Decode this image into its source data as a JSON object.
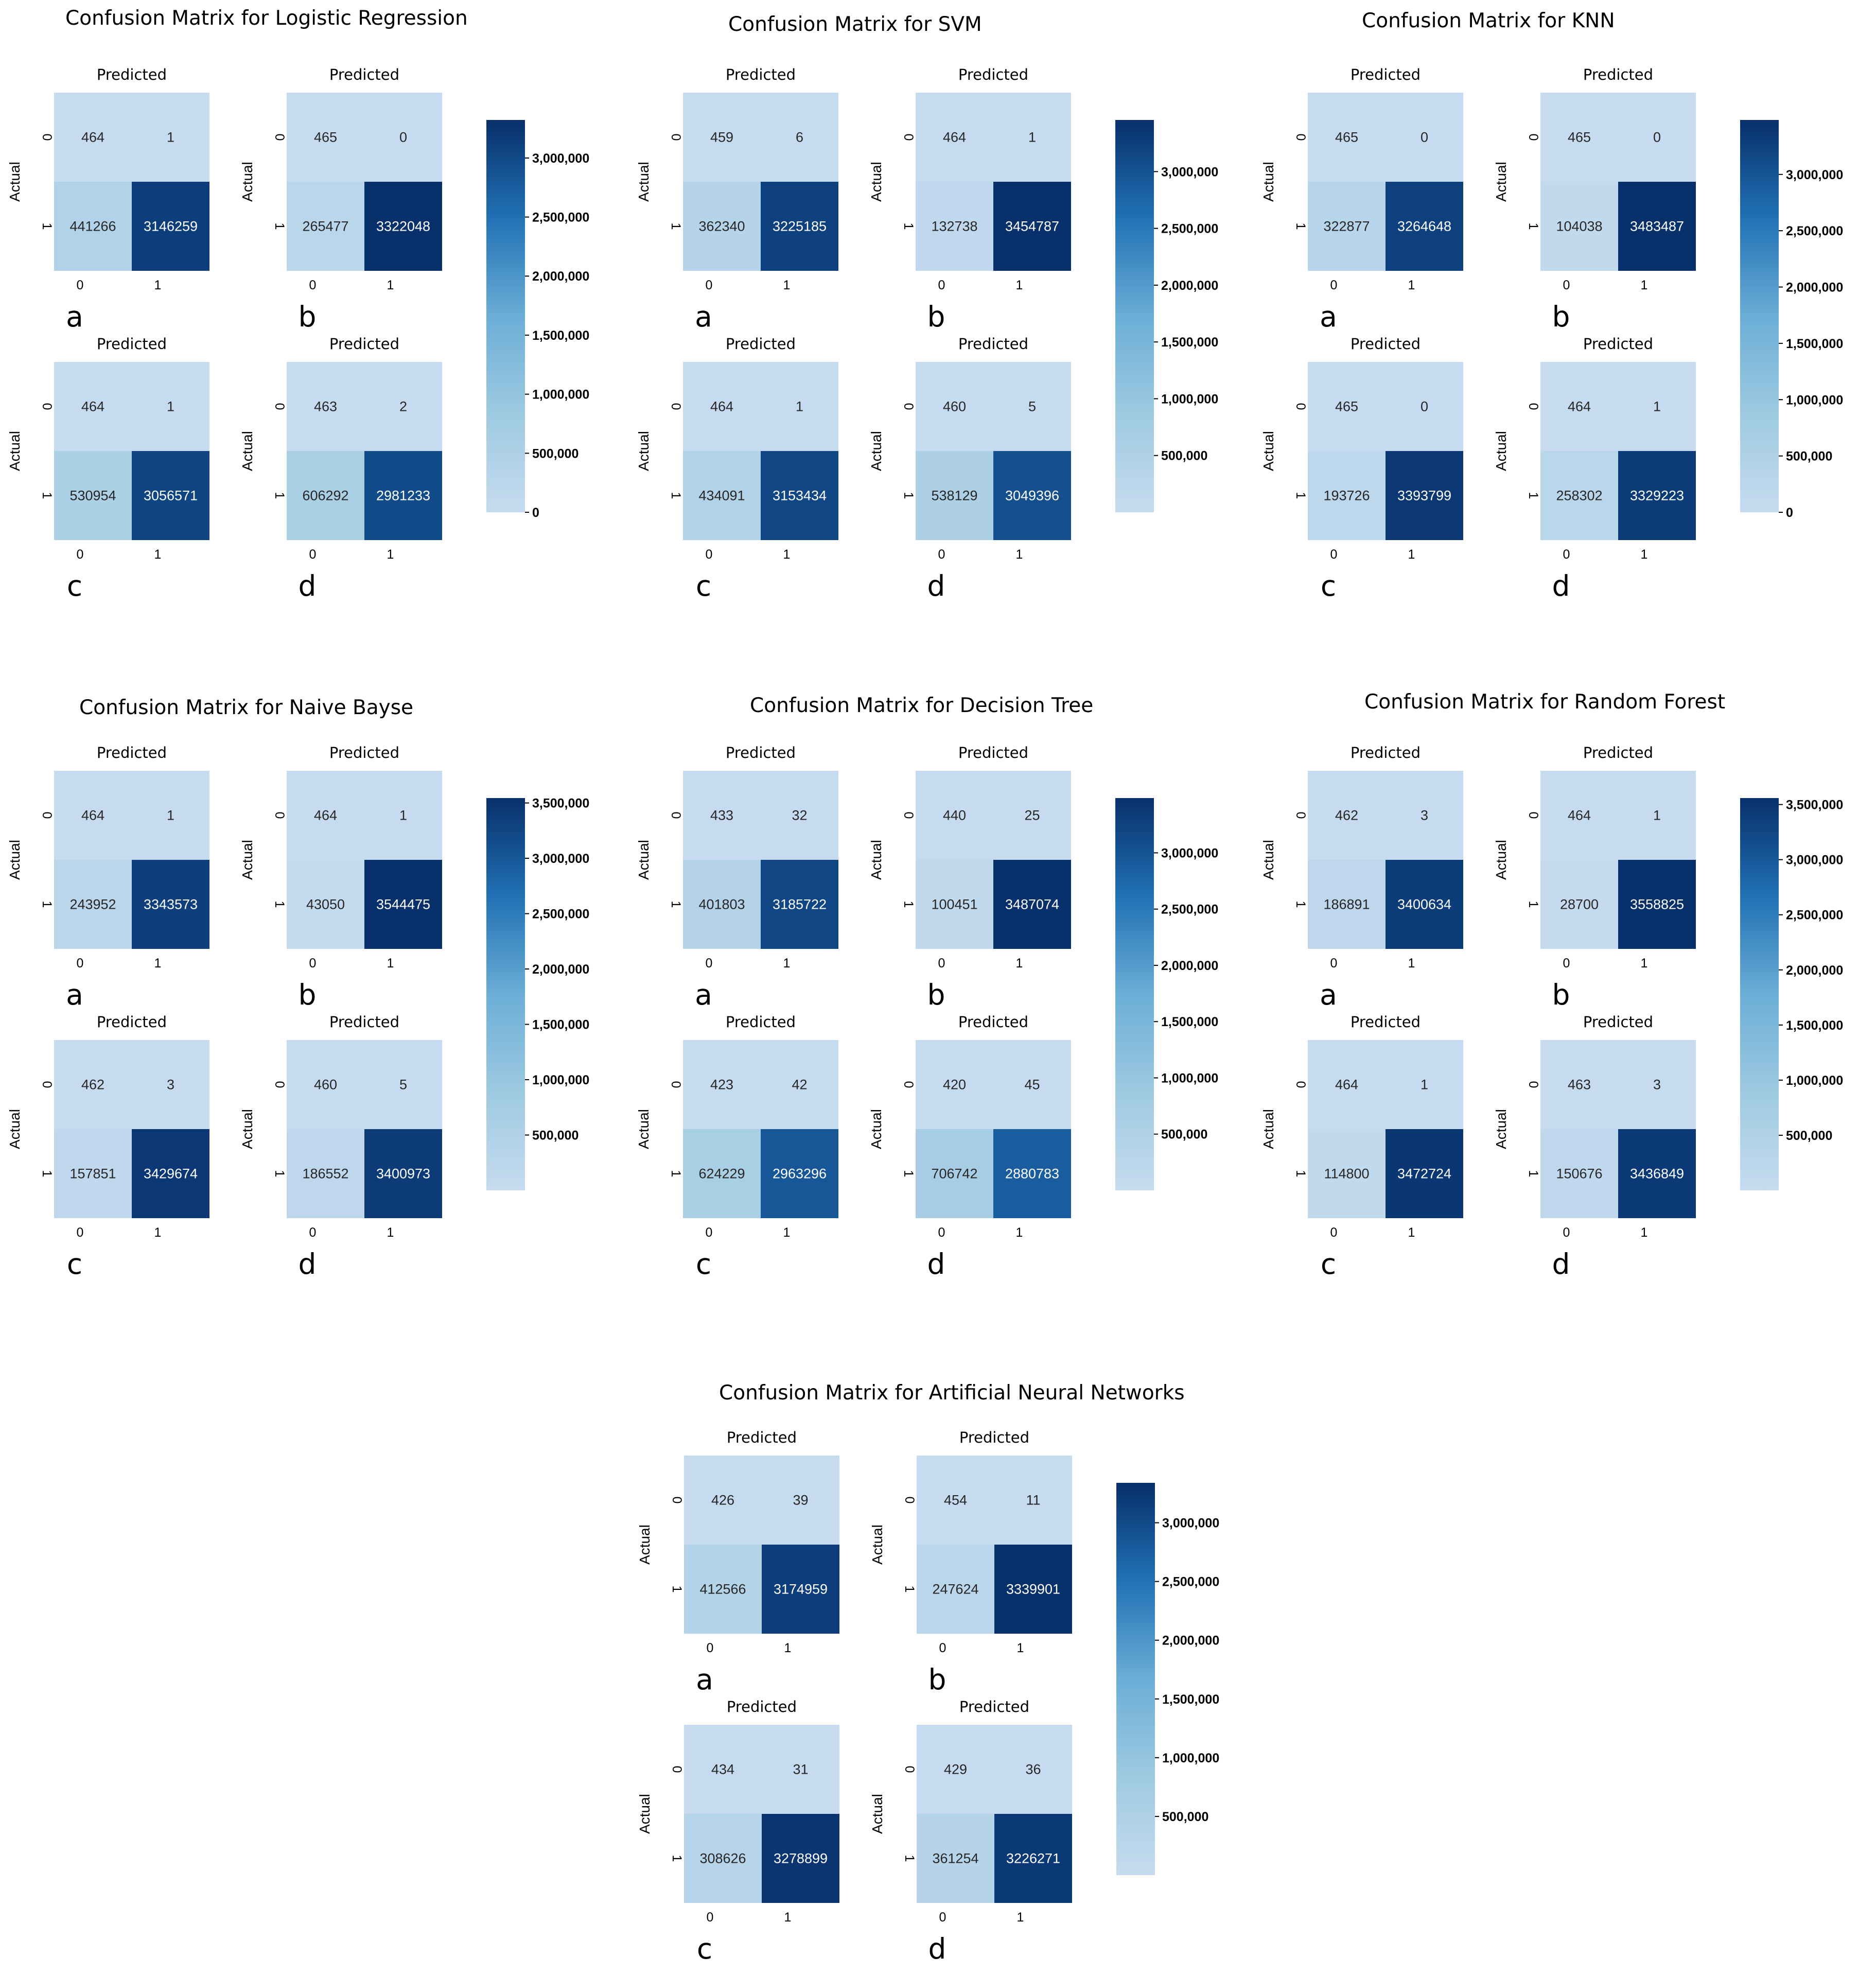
{
  "chart_data": [
    {
      "type": "heatmap",
      "title": "Confusion Matrix for Logistic Regression",
      "colorbar": {
        "range": [
          0,
          3322048
        ],
        "ticks": [
          "0",
          "500,000",
          "1,000,000",
          "1,500,000",
          "2,000,000",
          "2,500,000",
          "3,000,000"
        ]
      },
      "matrices": [
        {
          "label": "a",
          "xlabel": "Predicted",
          "ylabel": "Actual",
          "x_categories": [
            "0",
            "1"
          ],
          "y_categories": [
            "0",
            "1"
          ],
          "values": [
            [
              464,
              1
            ],
            [
              441266,
              3146259
            ]
          ]
        },
        {
          "label": "b",
          "xlabel": "Predicted",
          "ylabel": "Actual",
          "x_categories": [
            "0",
            "1"
          ],
          "y_categories": [
            "0",
            "1"
          ],
          "values": [
            [
              465,
              0
            ],
            [
              265477,
              3322048
            ]
          ]
        },
        {
          "label": "c",
          "xlabel": "Predicted",
          "ylabel": "Actual",
          "x_categories": [
            "0",
            "1"
          ],
          "y_categories": [
            "0",
            "1"
          ],
          "values": [
            [
              464,
              1
            ],
            [
              530954,
              3056571
            ]
          ]
        },
        {
          "label": "d",
          "xlabel": "Predicted",
          "ylabel": "Actual",
          "x_categories": [
            "0",
            "1"
          ],
          "y_categories": [
            "0",
            "1"
          ],
          "values": [
            [
              463,
              2
            ],
            [
              606292,
              2981233
            ]
          ]
        }
      ]
    },
    {
      "type": "heatmap",
      "title": "Confusion Matrix for SVM",
      "colorbar": {
        "range": [
          0,
          3454787
        ],
        "ticks": [
          "500,000",
          "1,000,000",
          "1,500,000",
          "2,000,000",
          "2,500,000",
          "3,000,000"
        ]
      },
      "matrices": [
        {
          "label": "a",
          "xlabel": "Predicted",
          "ylabel": "Actual",
          "x_categories": [
            "0",
            "1"
          ],
          "y_categories": [
            "0",
            "1"
          ],
          "values": [
            [
              459,
              6
            ],
            [
              362340,
              3225185
            ]
          ]
        },
        {
          "label": "b",
          "xlabel": "Predicted",
          "ylabel": "Actual",
          "x_categories": [
            "0",
            "1"
          ],
          "y_categories": [
            "0",
            "1"
          ],
          "values": [
            [
              464,
              1
            ],
            [
              132738,
              3454787
            ]
          ]
        },
        {
          "label": "c",
          "xlabel": "Predicted",
          "ylabel": "Actual",
          "x_categories": [
            "0",
            "1"
          ],
          "y_categories": [
            "0",
            "1"
          ],
          "values": [
            [
              464,
              1
            ],
            [
              434091,
              3153434
            ]
          ]
        },
        {
          "label": "d",
          "xlabel": "Predicted",
          "ylabel": "Actual",
          "x_categories": [
            "0",
            "1"
          ],
          "y_categories": [
            "0",
            "1"
          ],
          "values": [
            [
              460,
              5
            ],
            [
              538129,
              3049396
            ]
          ]
        }
      ]
    },
    {
      "type": "heatmap",
      "title": "Confusion Matrix for KNN",
      "colorbar": {
        "range": [
          0,
          3483487
        ],
        "ticks": [
          "0",
          "500,000",
          "1,000,000",
          "1,500,000",
          "2,000,000",
          "2,500,000",
          "3,000,000"
        ]
      },
      "matrices": [
        {
          "label": "a",
          "xlabel": "Predicted",
          "ylabel": "Actual",
          "x_categories": [
            "0",
            "1"
          ],
          "y_categories": [
            "0",
            "1"
          ],
          "values": [
            [
              465,
              0
            ],
            [
              322877,
              3264648
            ]
          ]
        },
        {
          "label": "b",
          "xlabel": "Predicted",
          "ylabel": "Actual",
          "x_categories": [
            "0",
            "1"
          ],
          "y_categories": [
            "0",
            "1"
          ],
          "values": [
            [
              465,
              0
            ],
            [
              104038,
              3483487
            ]
          ]
        },
        {
          "label": "c",
          "xlabel": "Predicted",
          "ylabel": "Actual",
          "x_categories": [
            "0",
            "1"
          ],
          "y_categories": [
            "0",
            "1"
          ],
          "values": [
            [
              465,
              0
            ],
            [
              193726,
              3393799
            ]
          ]
        },
        {
          "label": "d",
          "xlabel": "Predicted",
          "ylabel": "Actual",
          "x_categories": [
            "0",
            "1"
          ],
          "y_categories": [
            "0",
            "1"
          ],
          "values": [
            [
              464,
              1
            ],
            [
              258302,
              3329223
            ]
          ]
        }
      ]
    },
    {
      "type": "heatmap",
      "title": "Confusion Matrix for Naive Bayse",
      "colorbar": {
        "range": [
          0,
          3544475
        ],
        "ticks": [
          "500,000",
          "1,000,000",
          "1,500,000",
          "2,000,000",
          "2,500,000",
          "3,000,000",
          "3,500,000"
        ]
      },
      "matrices": [
        {
          "label": "a",
          "xlabel": "Predicted",
          "ylabel": "Actual",
          "x_categories": [
            "0",
            "1"
          ],
          "y_categories": [
            "0",
            "1"
          ],
          "values": [
            [
              464,
              1
            ],
            [
              243952,
              3343573
            ]
          ]
        },
        {
          "label": "b",
          "xlabel": "Predicted",
          "ylabel": "Actual",
          "x_categories": [
            "0",
            "1"
          ],
          "y_categories": [
            "0",
            "1"
          ],
          "values": [
            [
              464,
              1
            ],
            [
              43050,
              3544475
            ]
          ]
        },
        {
          "label": "c",
          "xlabel": "Predicted",
          "ylabel": "Actual",
          "x_categories": [
            "0",
            "1"
          ],
          "y_categories": [
            "0",
            "1"
          ],
          "values": [
            [
              462,
              3
            ],
            [
              157851,
              3429674
            ]
          ]
        },
        {
          "label": "d",
          "xlabel": "Predicted",
          "ylabel": "Actual",
          "x_categories": [
            "0",
            "1"
          ],
          "y_categories": [
            "0",
            "1"
          ],
          "values": [
            [
              460,
              5
            ],
            [
              186552,
              3400973
            ]
          ]
        }
      ]
    },
    {
      "type": "heatmap",
      "title": "Confusion Matrix for Decision Tree",
      "colorbar": {
        "range": [
          0,
          3487074
        ],
        "ticks": [
          "500,000",
          "1,000,000",
          "1,500,000",
          "2,000,000",
          "2,500,000",
          "3,000,000"
        ]
      },
      "matrices": [
        {
          "label": "a",
          "xlabel": "Predicted",
          "ylabel": "Actual",
          "x_categories": [
            "0",
            "1"
          ],
          "y_categories": [
            "0",
            "1"
          ],
          "values": [
            [
              433,
              32
            ],
            [
              401803,
              3185722
            ]
          ]
        },
        {
          "label": "b",
          "xlabel": "Predicted",
          "ylabel": "Actual",
          "x_categories": [
            "0",
            "1"
          ],
          "y_categories": [
            "0",
            "1"
          ],
          "values": [
            [
              440,
              25
            ],
            [
              100451,
              3487074
            ]
          ]
        },
        {
          "label": "c",
          "xlabel": "Predicted",
          "ylabel": "Actual",
          "x_categories": [
            "0",
            "1"
          ],
          "y_categories": [
            "0",
            "1"
          ],
          "values": [
            [
              423,
              42
            ],
            [
              624229,
              2963296
            ]
          ]
        },
        {
          "label": "d",
          "xlabel": "Predicted",
          "ylabel": "Actual",
          "x_categories": [
            "0",
            "1"
          ],
          "y_categories": [
            "0",
            "1"
          ],
          "values": [
            [
              420,
              45
            ],
            [
              706742,
              2880783
            ]
          ]
        }
      ]
    },
    {
      "type": "heatmap",
      "title": "Confusion Matrix for Random Forest",
      "colorbar": {
        "range": [
          0,
          3558825
        ],
        "ticks": [
          "500,000",
          "1,000,000",
          "1,500,000",
          "2,000,000",
          "2,500,000",
          "3,000,000",
          "3,500,000"
        ]
      },
      "matrices": [
        {
          "label": "a",
          "xlabel": "Predicted",
          "ylabel": "Actual",
          "x_categories": [
            "0",
            "1"
          ],
          "y_categories": [
            "0",
            "1"
          ],
          "values": [
            [
              462,
              3
            ],
            [
              186891,
              3400634
            ]
          ]
        },
        {
          "label": "b",
          "xlabel": "Predicted",
          "ylabel": "Actual",
          "x_categories": [
            "0",
            "1"
          ],
          "y_categories": [
            "0",
            "1"
          ],
          "values": [
            [
              464,
              1
            ],
            [
              28700,
              3558825
            ]
          ]
        },
        {
          "label": "c",
          "xlabel": "Predicted",
          "ylabel": "Actual",
          "x_categories": [
            "0",
            "1"
          ],
          "y_categories": [
            "0",
            "1"
          ],
          "values": [
            [
              464,
              1
            ],
            [
              114800,
              3472724
            ]
          ]
        },
        {
          "label": "d",
          "xlabel": "Predicted",
          "ylabel": "Actual",
          "x_categories": [
            "0",
            "1"
          ],
          "y_categories": [
            "0",
            "1"
          ],
          "values": [
            [
              463,
              3
            ],
            [
              150676,
              3436849
            ]
          ]
        }
      ]
    },
    {
      "type": "heatmap",
      "title": "Confusion Matrix for Artificial Neural Networks",
      "colorbar": {
        "range": [
          0,
          3339901
        ],
        "ticks": [
          "500,000",
          "1,000,000",
          "1,500,000",
          "2,000,000",
          "2,500,000",
          "3,000,000"
        ]
      },
      "matrices": [
        {
          "label": "a",
          "xlabel": "Predicted",
          "ylabel": "Actual",
          "x_categories": [
            "0",
            "1"
          ],
          "y_categories": [
            "0",
            "1"
          ],
          "values": [
            [
              426,
              39
            ],
            [
              412566,
              3174959
            ]
          ]
        },
        {
          "label": "b",
          "xlabel": "Predicted",
          "ylabel": "Actual",
          "x_categories": [
            "0",
            "1"
          ],
          "y_categories": [
            "0",
            "1"
          ],
          "values": [
            [
              454,
              11
            ],
            [
              247624,
              3339901
            ]
          ]
        },
        {
          "label": "c",
          "xlabel": "Predicted",
          "ylabel": "Actual",
          "x_categories": [
            "0",
            "1"
          ],
          "y_categories": [
            "0",
            "1"
          ],
          "values": [
            [
              434,
              31
            ],
            [
              308626,
              3278899
            ]
          ]
        },
        {
          "label": "d",
          "xlabel": "Predicted",
          "ylabel": "Actual",
          "x_categories": [
            "0",
            "1"
          ],
          "y_categories": [
            "0",
            "1"
          ],
          "values": [
            [
              429,
              36
            ],
            [
              361254,
              3226271
            ]
          ]
        }
      ]
    }
  ]
}
